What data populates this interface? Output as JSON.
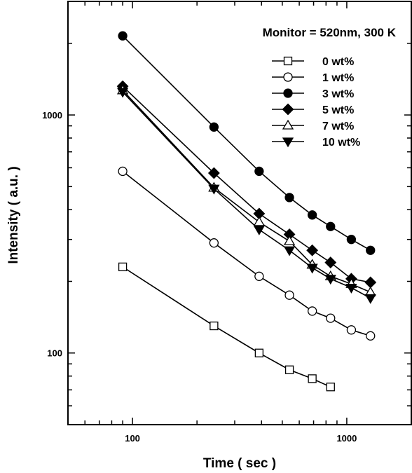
{
  "chart_data": {
    "type": "scatter",
    "x_scale": "log",
    "y_scale": "log",
    "xlim": [
      50,
      2000
    ],
    "ylim": [
      50,
      3000
    ],
    "xlabel": "Time ( sec )",
    "ylabel": "Intensity ( a.u. )",
    "x_tick_labels": [
      "100",
      "1000"
    ],
    "y_tick_labels": [
      "100",
      "1000"
    ],
    "annotation": "Monitor = 520nm, 300 K",
    "legend_position": "top-right",
    "grid": false,
    "series": [
      {
        "name": "0 wt%",
        "marker": "square-open",
        "x": [
          90,
          240,
          390,
          540,
          690,
          840
        ],
        "y": [
          230,
          130,
          100,
          85,
          78,
          72
        ]
      },
      {
        "name": "1 wt%",
        "marker": "circle-open",
        "x": [
          90,
          240,
          390,
          540,
          690,
          840,
          1050,
          1290
        ],
        "y": [
          580,
          290,
          210,
          175,
          150,
          140,
          125,
          118
        ]
      },
      {
        "name": "3 wt%",
        "marker": "circle-filled",
        "x": [
          90,
          240,
          390,
          540,
          690,
          840,
          1050,
          1290
        ],
        "y": [
          2150,
          890,
          580,
          450,
          380,
          340,
          300,
          270
        ]
      },
      {
        "name": "5 wt%",
        "marker": "diamond-filled",
        "x": [
          90,
          240,
          390,
          540,
          690,
          840,
          1050,
          1290
        ],
        "y": [
          1320,
          570,
          385,
          315,
          270,
          240,
          205,
          198
        ]
      },
      {
        "name": "7 wt%",
        "marker": "triangle-up-open",
        "x": [
          90,
          240,
          390,
          540,
          690,
          840,
          1050,
          1290
        ],
        "y": [
          1270,
          495,
          355,
          295,
          235,
          210,
          195,
          180
        ]
      },
      {
        "name": "10 wt%",
        "marker": "triangle-down-filled",
        "x": [
          90,
          240,
          390,
          540,
          690,
          840,
          1050,
          1290
        ],
        "y": [
          1250,
          490,
          330,
          270,
          228,
          205,
          188,
          170
        ]
      }
    ]
  }
}
